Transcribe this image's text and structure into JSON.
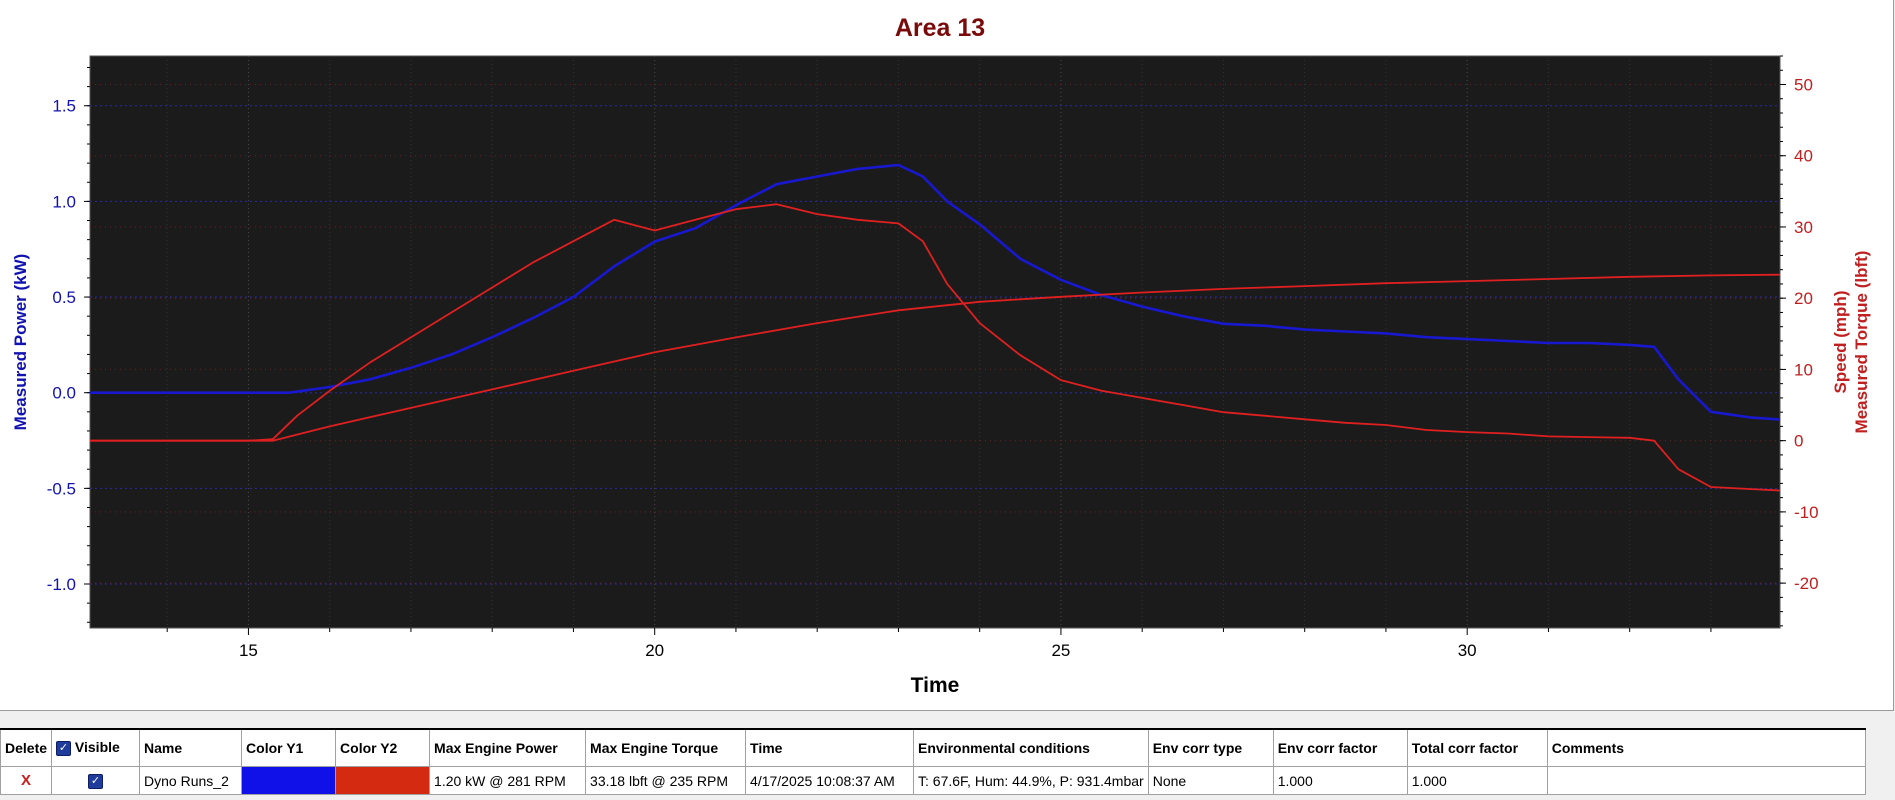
{
  "chart_data": {
    "type": "line",
    "title": "Area 13",
    "xlabel": "Time",
    "ylabel_left": "Measured Power (kW)",
    "ylabel_right_1": "Speed (mph)",
    "ylabel_right_2": "Measured Torque (lbft)",
    "xlim": [
      13.05,
      33.85
    ],
    "ylim_left": [
      -1.23,
      1.76
    ],
    "ylim_right": [
      -26.3,
      54.0
    ],
    "x_ticks": [
      15,
      20,
      25,
      30
    ],
    "y_left_ticks": [
      -1.0,
      -0.5,
      0.0,
      0.5,
      1.0,
      1.5
    ],
    "y_left_tick_labels": [
      "-1.0",
      "-0.5",
      "0.0",
      "0.5",
      "1.0",
      "1.5"
    ],
    "y_right_ticks": [
      -20,
      -10,
      0,
      10,
      20,
      30,
      40,
      50
    ],
    "grid": true,
    "series": [
      {
        "axis": "left",
        "color": "#1818d0",
        "x": [
          13.05,
          15.0,
          15.5,
          16.0,
          16.5,
          17.0,
          17.5,
          18.0,
          18.5,
          19.0,
          19.5,
          20.0,
          20.5,
          21.0,
          21.5,
          22.0,
          22.5,
          23.0,
          23.3,
          23.6,
          24.0,
          24.5,
          25.0,
          25.5,
          26.0,
          26.5,
          27.0,
          27.5,
          28.0,
          28.5,
          29.0,
          29.5,
          30.0,
          30.5,
          31.0,
          31.5,
          32.0,
          32.3,
          32.6,
          33.0,
          33.5,
          33.85
        ],
        "y": [
          0.0,
          0.0,
          0.0,
          0.03,
          0.07,
          0.13,
          0.2,
          0.29,
          0.39,
          0.5,
          0.66,
          0.79,
          0.86,
          0.98,
          1.09,
          1.13,
          1.17,
          1.19,
          1.13,
          1.0,
          0.88,
          0.7,
          0.59,
          0.51,
          0.45,
          0.4,
          0.36,
          0.35,
          0.33,
          0.32,
          0.31,
          0.29,
          0.28,
          0.27,
          0.26,
          0.26,
          0.25,
          0.24,
          0.07,
          -0.1,
          -0.13,
          -0.14
        ]
      },
      {
        "axis": "right",
        "color": "#e02020",
        "x": [
          13.05,
          15.0,
          15.3,
          15.6,
          16.0,
          16.5,
          17.0,
          17.5,
          18.0,
          18.5,
          19.0,
          19.5,
          20.0,
          20.5,
          21.0,
          21.5,
          22.0,
          22.5,
          23.0,
          23.3,
          23.6,
          24.0,
          24.5,
          25.0,
          25.5,
          26.0,
          26.5,
          27.0,
          27.5,
          28.0,
          28.5,
          29.0,
          29.5,
          30.0,
          30.5,
          31.0,
          31.5,
          32.0,
          32.3,
          32.6,
          33.0,
          33.5,
          33.85
        ],
        "y": [
          0.0,
          0.0,
          0.2,
          3.5,
          7.0,
          11.0,
          14.5,
          18.0,
          21.5,
          25.0,
          28.0,
          31.0,
          29.5,
          31.0,
          32.5,
          33.2,
          31.8,
          31.0,
          30.5,
          28.0,
          22.0,
          16.5,
          12.0,
          8.5,
          7.0,
          6.0,
          5.0,
          4.0,
          3.5,
          3.0,
          2.5,
          2.2,
          1.5,
          1.2,
          1.0,
          0.6,
          0.5,
          0.4,
          0.0,
          -4.0,
          -6.5,
          -6.8,
          -7.0
        ]
      },
      {
        "axis": "right",
        "color": "#e02020",
        "x": [
          13.05,
          15.3,
          16.0,
          17.0,
          18.0,
          19.0,
          20.0,
          21.0,
          22.0,
          23.0,
          24.0,
          25.0,
          26.0,
          27.0,
          28.0,
          29.0,
          30.0,
          31.0,
          32.0,
          33.0,
          33.85
        ],
        "y": [
          0.0,
          0.0,
          2.0,
          4.6,
          7.2,
          9.8,
          12.4,
          14.5,
          16.5,
          18.3,
          19.5,
          20.2,
          20.8,
          21.3,
          21.7,
          22.1,
          22.4,
          22.7,
          23.0,
          23.2,
          23.3
        ]
      }
    ]
  },
  "table": {
    "headers": [
      "Delete",
      "Visible",
      "Name",
      "Color Y1",
      "Color Y2",
      "Max Engine Power",
      "Max Engine Torque",
      "Time",
      "Environmental conditions",
      "Env corr type",
      "Env corr factor",
      "Total corr factor",
      "Comments"
    ],
    "rows": [
      {
        "delete": "X",
        "name": "Dyno Runs_2",
        "color_y1": "#1010e8",
        "color_y2": "#d42a12",
        "max_power": "1.20 kW @ 281 RPM",
        "max_torque": "33.18 lbft @ 235 RPM",
        "time": "4/17/2025 10:08:37 AM",
        "env_conditions": "T: 67.6F, Hum: 44.9%, P: 931.4mbar",
        "env_corr_type": "None",
        "env_corr_factor": "1.000",
        "total_corr_factor": "1.000",
        "comments": ""
      }
    ]
  }
}
